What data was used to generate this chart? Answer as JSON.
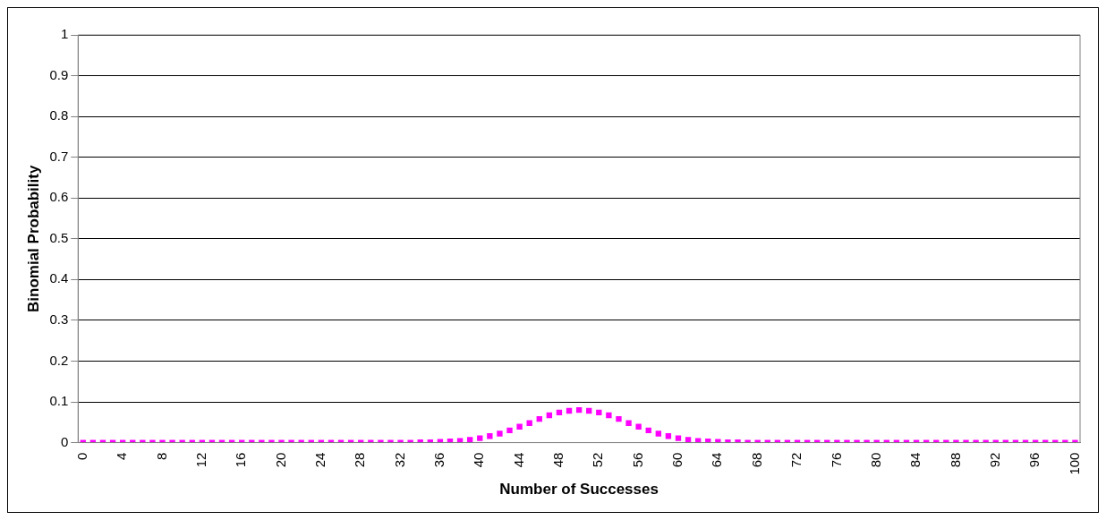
{
  "chart_data": {
    "type": "scatter",
    "xlabel": "Number of Successes",
    "ylabel": "Binomial Probability",
    "categories": [
      "0",
      null,
      null,
      null,
      "4",
      null,
      null,
      null,
      "8",
      null,
      null,
      null,
      "12",
      null,
      null,
      null,
      "16",
      null,
      null,
      null,
      "20",
      null,
      null,
      null,
      "24",
      null,
      null,
      null,
      "28",
      null,
      null,
      null,
      "32",
      null,
      null,
      null,
      "36",
      null,
      null,
      null,
      "40",
      null,
      null,
      null,
      "44",
      null,
      null,
      null,
      "48",
      null,
      null,
      null,
      "52",
      null,
      null,
      null,
      "56",
      null,
      null,
      null,
      "60",
      null,
      null,
      null,
      "64",
      null,
      null,
      null,
      "68",
      null,
      null,
      null,
      "72",
      null,
      null,
      null,
      "76",
      null,
      null,
      null,
      "80",
      null,
      null,
      null,
      "84",
      null,
      null,
      null,
      "88",
      null,
      null,
      null,
      "92",
      null,
      null,
      null,
      "96",
      null,
      null,
      null,
      "100"
    ],
    "series": [
      {
        "color": "#ff00ff",
        "values": [
          0,
          0,
          0,
          0,
          0,
          0,
          0,
          0,
          0,
          0,
          0,
          0,
          0,
          0,
          0,
          0,
          0,
          0,
          0,
          0,
          0,
          0,
          0,
          0,
          0,
          0,
          0,
          0,
          0,
          0,
          0,
          0,
          0,
          0,
          0.001,
          0.001,
          0.002,
          0.003,
          0.004,
          0.007,
          0.011,
          0.016,
          0.022,
          0.03,
          0.039,
          0.048,
          0.058,
          0.067,
          0.074,
          0.078,
          0.08,
          0.078,
          0.074,
          0.067,
          0.058,
          0.048,
          0.039,
          0.03,
          0.022,
          0.016,
          0.011,
          0.007,
          0.004,
          0.003,
          0.002,
          0.001,
          0.001,
          0,
          0,
          0,
          0,
          0,
          0,
          0,
          0,
          0,
          0,
          0,
          0,
          0,
          0,
          0,
          0,
          0,
          0,
          0,
          0,
          0,
          0,
          0,
          0,
          0,
          0,
          0,
          0,
          0,
          0,
          0,
          0,
          0,
          0
        ]
      }
    ],
    "ylim": [
      0,
      1
    ],
    "yticks": [
      0,
      0.1,
      0.2,
      0.3,
      0.4,
      0.5,
      0.6,
      0.7,
      0.8,
      0.9,
      1
    ],
    "grid": "y",
    "marker": "square",
    "legend": false
  }
}
